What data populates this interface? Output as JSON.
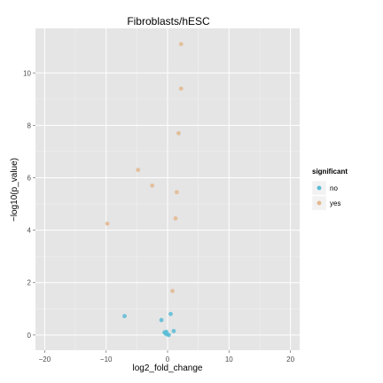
{
  "chart_data": {
    "type": "scatter",
    "title": "Fibroblasts/hESC",
    "xlabel": "log2_fold_change",
    "ylabel": "−log10(p_value)",
    "xlim": [
      -21.5,
      21.5
    ],
    "ylim": [
      -0.58,
      11.7
    ],
    "x_ticks": [
      -20,
      -10,
      0,
      10,
      20
    ],
    "x_tick_labels": [
      "−20",
      "−10",
      "0",
      "10",
      "20"
    ],
    "y_ticks": [
      0,
      2,
      4,
      6,
      8,
      10
    ],
    "y_tick_labels": [
      "0",
      "2",
      "4",
      "6",
      "8",
      "10"
    ],
    "grid": true,
    "legend": {
      "title": "significant",
      "position": "right",
      "entries": [
        {
          "label": "no",
          "color": "#5bbcd6"
        },
        {
          "label": "yes",
          "color": "#e3b88f"
        }
      ]
    },
    "series": [
      {
        "name": "no",
        "color": "#5bbcd6",
        "points": [
          {
            "x": -7.0,
            "y": 0.72
          },
          {
            "x": -1.0,
            "y": 0.57
          },
          {
            "x": 0.5,
            "y": 0.8
          },
          {
            "x": 1.0,
            "y": 0.15
          },
          {
            "x": -0.5,
            "y": 0.1
          },
          {
            "x": -0.3,
            "y": 0.05
          },
          {
            "x": 0.0,
            "y": 0.02
          },
          {
            "x": -0.2,
            "y": 0.12
          },
          {
            "x": 0.2,
            "y": 0.0
          }
        ]
      },
      {
        "name": "yes",
        "color": "#e3b88f",
        "points": [
          {
            "x": 2.2,
            "y": 11.1
          },
          {
            "x": 2.2,
            "y": 9.4
          },
          {
            "x": 1.8,
            "y": 7.7
          },
          {
            "x": -4.8,
            "y": 6.3
          },
          {
            "x": -2.5,
            "y": 5.7
          },
          {
            "x": 1.5,
            "y": 5.45
          },
          {
            "x": 1.3,
            "y": 4.45
          },
          {
            "x": -9.8,
            "y": 4.25
          },
          {
            "x": 0.8,
            "y": 1.68
          }
        ]
      }
    ]
  }
}
